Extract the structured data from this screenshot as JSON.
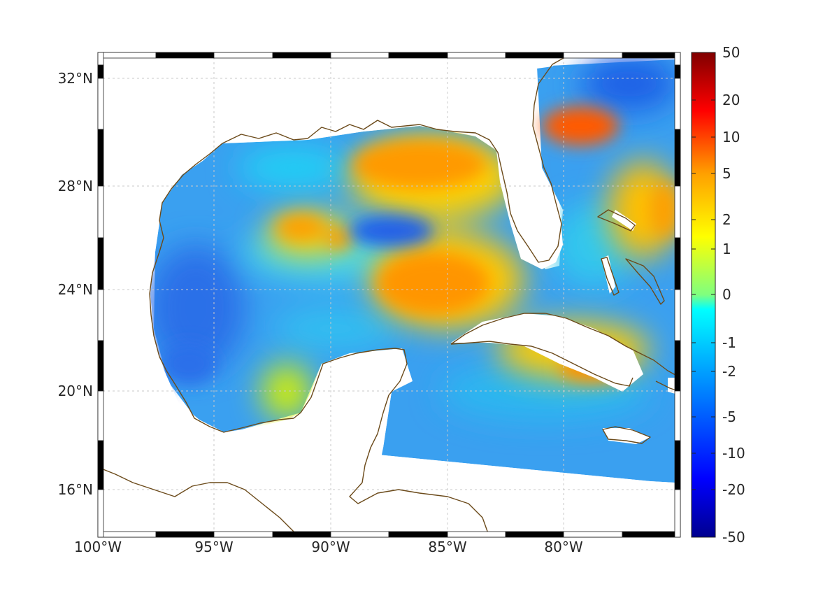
{
  "map": {
    "lon_range": [
      -100,
      -75
    ],
    "lat_range": [
      14.3,
      33.0
    ],
    "grid": true,
    "x_ticks": [
      "100°W",
      "95°W",
      "90°W",
      "85°W",
      "80°W"
    ],
    "y_ticks": [
      "32°N",
      "28°N",
      "24°N",
      "20°N",
      "16°N"
    ],
    "colorbar": {
      "ticks": [
        "50",
        "20",
        "10",
        "5",
        "2",
        "1",
        "0",
        "-1",
        "-2",
        "-5",
        "-10",
        "-20",
        "-50"
      ],
      "colormap": "jet"
    },
    "coastline_color": "#6b4a1a",
    "land_color": "#ffffff",
    "field_hotspots": [
      {
        "region": "northern gulf shelf",
        "value": "5"
      },
      {
        "region": "west florida shelf / loop current",
        "value": "5"
      },
      {
        "region": "off south carolina",
        "value": "10"
      },
      {
        "region": "south of cuba",
        "value": "5"
      },
      {
        "region": "east of bahamas",
        "value": "2"
      },
      {
        "region": "western gulf",
        "value": "-5"
      }
    ]
  }
}
